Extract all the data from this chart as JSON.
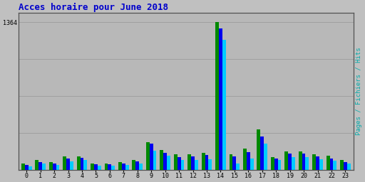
{
  "title": "Acces horaire pour June 2018",
  "title_color": "#0000cc",
  "title_fontsize": 9,
  "hours": [
    0,
    1,
    2,
    3,
    4,
    5,
    6,
    7,
    8,
    9,
    10,
    11,
    12,
    13,
    14,
    15,
    16,
    17,
    18,
    19,
    20,
    21,
    22,
    23
  ],
  "pages": [
    55,
    90,
    72,
    120,
    125,
    58,
    58,
    68,
    88,
    255,
    185,
    140,
    145,
    155,
    1364,
    145,
    195,
    370,
    118,
    168,
    168,
    140,
    128,
    88
  ],
  "fichiers": [
    42,
    72,
    58,
    100,
    108,
    48,
    48,
    58,
    75,
    240,
    155,
    118,
    122,
    135,
    1310,
    120,
    165,
    310,
    105,
    148,
    148,
    120,
    105,
    72
  ],
  "hits": [
    32,
    55,
    45,
    78,
    88,
    35,
    35,
    42,
    60,
    175,
    130,
    88,
    90,
    98,
    1200,
    55,
    100,
    240,
    88,
    118,
    118,
    98,
    82,
    58
  ],
  "ylim": [
    0,
    1450
  ],
  "ylabel_right": "Pages / Fichiers / Hits",
  "bg_color": "#c0c0c0",
  "plot_bg_color": "#b8b8b8",
  "color_pages": "#008800",
  "color_fichiers": "#0000ee",
  "color_hits": "#00ccff",
  "grid_color": "#a0a0a0",
  "ytick_label": "1364",
  "ytick_val": 1364,
  "yticks": [
    0,
    341,
    682,
    1023,
    1364
  ]
}
